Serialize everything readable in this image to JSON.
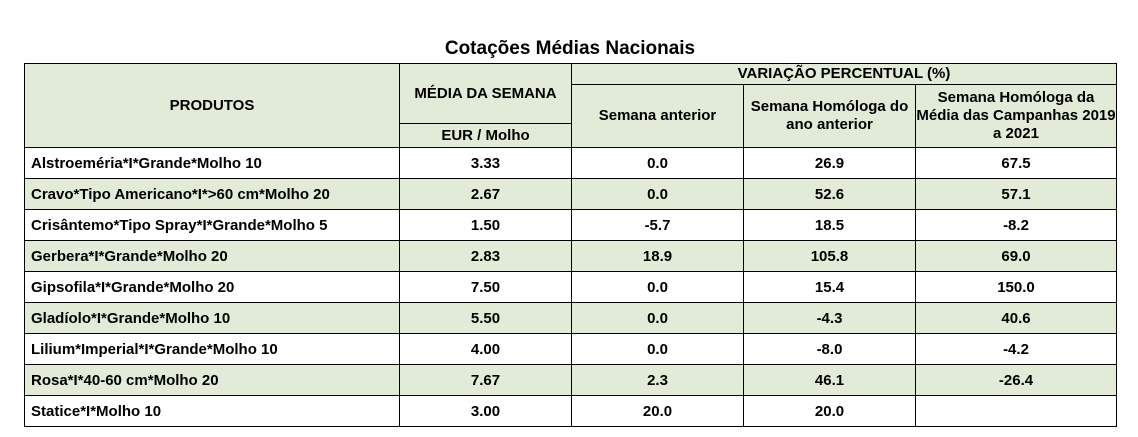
{
  "title": "Cotações Médias Nacionais",
  "headers": {
    "produtos": "PRODUTOS",
    "media_semana": "MÉDIA DA SEMANA",
    "unit": "EUR / Molho",
    "variacao": "VARIAÇÃO PERCENTUAL (%)",
    "semana_anterior": "Semana anterior",
    "semana_homologa": "Semana Homóloga do ano anterior",
    "semana_homologa_campanhas": "Semana Homóloga da Média das Campanhas 2019 a 2021"
  },
  "rows": [
    {
      "produto": "Alstroeméria*I*Grande*Molho 10",
      "media": "3.33",
      "anterior": "0.0",
      "homologa": "26.9",
      "campanhas": "67.5"
    },
    {
      "produto": "Cravo*Tipo Americano*I*>60 cm*Molho 20",
      "media": "2.67",
      "anterior": "0.0",
      "homologa": "52.6",
      "campanhas": "57.1"
    },
    {
      "produto": "Crisântemo*Tipo Spray*I*Grande*Molho 5",
      "media": "1.50",
      "anterior": "-5.7",
      "homologa": "18.5",
      "campanhas": "-8.2"
    },
    {
      "produto": "Gerbera*I*Grande*Molho 20",
      "media": "2.83",
      "anterior": "18.9",
      "homologa": "105.8",
      "campanhas": "69.0"
    },
    {
      "produto": "Gipsofila*I*Grande*Molho 20",
      "media": "7.50",
      "anterior": "0.0",
      "homologa": "15.4",
      "campanhas": "150.0"
    },
    {
      "produto": "Gladíolo*I*Grande*Molho 10",
      "media": "5.50",
      "anterior": "0.0",
      "homologa": "-4.3",
      "campanhas": "40.6"
    },
    {
      "produto": "Lilium*Imperial*I*Grande*Molho 10",
      "media": "4.00",
      "anterior": "0.0",
      "homologa": "-8.0",
      "campanhas": "-4.2"
    },
    {
      "produto": "Rosa*I*40-60 cm*Molho 20",
      "media": "7.67",
      "anterior": "2.3",
      "homologa": "46.1",
      "campanhas": "-26.4"
    },
    {
      "produto": "Statice*I*Molho 10",
      "media": "3.00",
      "anterior": "20.0",
      "homologa": "20.0",
      "campanhas": ""
    }
  ]
}
